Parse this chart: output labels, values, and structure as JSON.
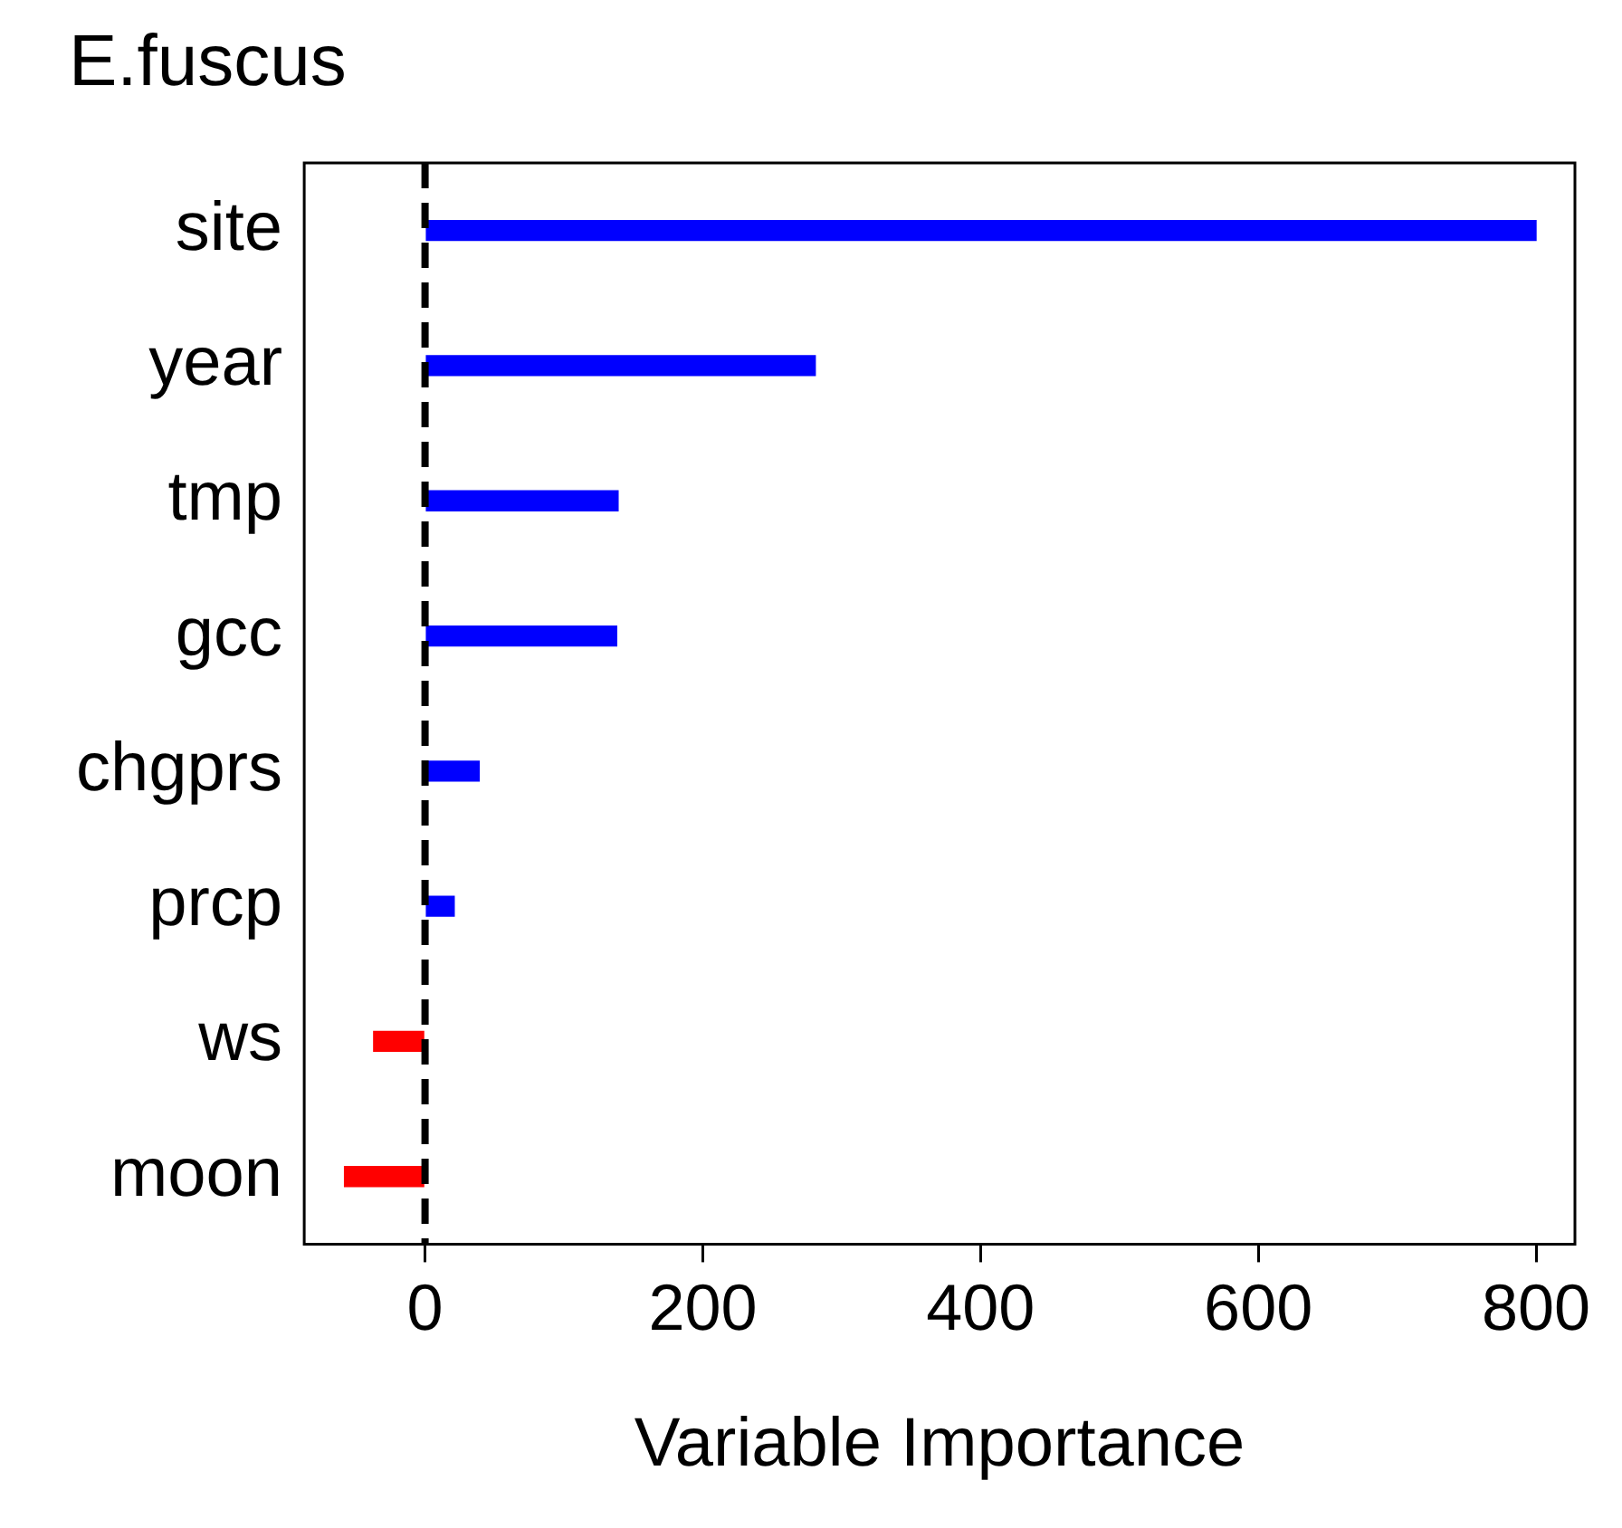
{
  "chart_data": {
    "type": "bar",
    "orientation": "horizontal",
    "title": "E.fuscus",
    "xlabel": "Variable Importance",
    "categories": [
      "site",
      "year",
      "tmp",
      "gcc",
      "chgprs",
      "prcp",
      "ws",
      "moon"
    ],
    "values": [
      800,
      281,
      139,
      138,
      39,
      21,
      -37,
      -58
    ],
    "colors": [
      "#0000ff",
      "#0000ff",
      "#0000ff",
      "#0000ff",
      "#0000ff",
      "#0000ff",
      "#ff0000",
      "#ff0000"
    ],
    "xlim": [
      -87,
      828
    ],
    "xticks": [
      0,
      200,
      400,
      600,
      800
    ],
    "grid": false,
    "legend": false,
    "ref_lines": [
      {
        "axis": "x",
        "value": 0,
        "color": "#000000",
        "line_style": "dashed"
      }
    ]
  }
}
